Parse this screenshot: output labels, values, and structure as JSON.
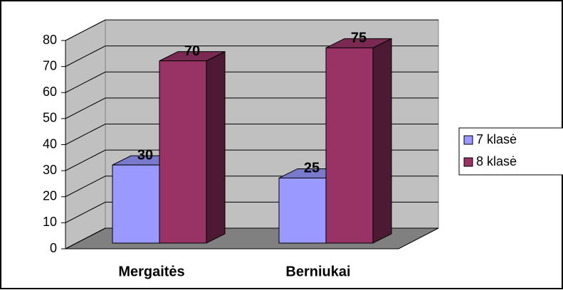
{
  "chart_data": {
    "type": "bar",
    "categories": [
      "Mergaitės",
      "Berniukai"
    ],
    "series": [
      {
        "name": "7 klasė",
        "color": "#9999ff",
        "values": [
          30,
          25
        ]
      },
      {
        "name": "8 klasė",
        "color": "#993366",
        "values": [
          70,
          75
        ]
      }
    ],
    "ylim": [
      0,
      80
    ],
    "yticks": [
      0,
      10,
      20,
      30,
      40,
      50,
      60,
      70,
      80
    ],
    "grid": true,
    "legend": "right"
  }
}
